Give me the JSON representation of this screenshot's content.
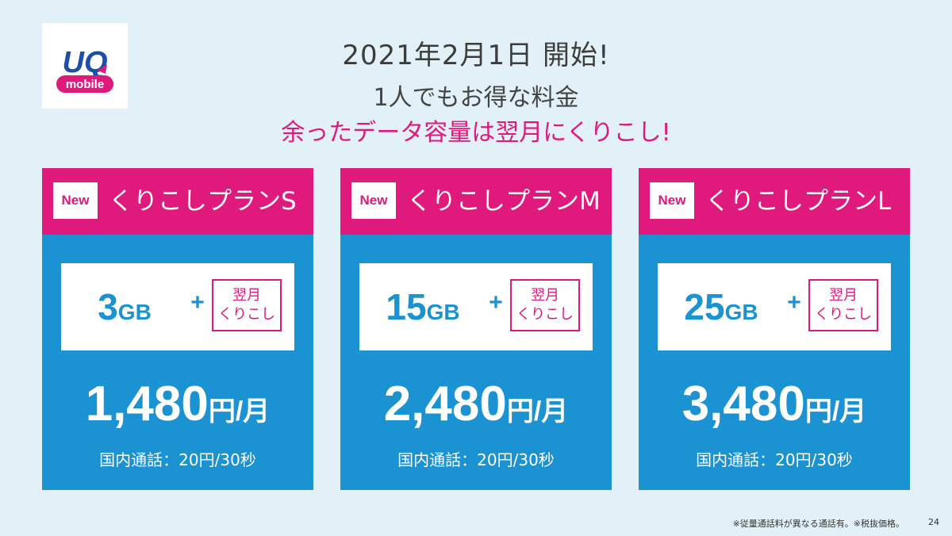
{
  "logo": {
    "brand_text": "UQ",
    "sub_text": "mobile",
    "colors": {
      "brand_blue": "#1b4fa8",
      "brand_pink": "#e0197d"
    }
  },
  "header": {
    "title": "2021年2月1日 開始!",
    "subtitle": "1人でもお得な料金",
    "tagline": "余ったデータ容量は翌月にくりこし!"
  },
  "plans": [
    {
      "badge": "New",
      "name": "くりこしプランS",
      "data_amount": "3",
      "data_unit": "GB",
      "plus": "+",
      "carryover_line1": "翌月",
      "carryover_line2": "くりこし",
      "price": "1,480",
      "price_unit": "円/月",
      "call_rate": "国内通話：20円/30秒"
    },
    {
      "badge": "New",
      "name": "くりこしプランM",
      "data_amount": "15",
      "data_unit": "GB",
      "plus": "+",
      "carryover_line1": "翌月",
      "carryover_line2": "くりこし",
      "price": "2,480",
      "price_unit": "円/月",
      "call_rate": "国内通話：20円/30秒"
    },
    {
      "badge": "New",
      "name": "くりこしプランL",
      "data_amount": "25",
      "data_unit": "GB",
      "plus": "+",
      "carryover_line1": "翌月",
      "carryover_line2": "くりこし",
      "price": "3,480",
      "price_unit": "円/月",
      "call_rate": "国内通話：20円/30秒"
    }
  ],
  "footnote": "※従量通話料が異なる通話有。※税抜価格。",
  "page_number": "24",
  "colors": {
    "background": "#e2f0f7",
    "accent_pink": "#e0197d",
    "accent_blue": "#1b92d2"
  }
}
